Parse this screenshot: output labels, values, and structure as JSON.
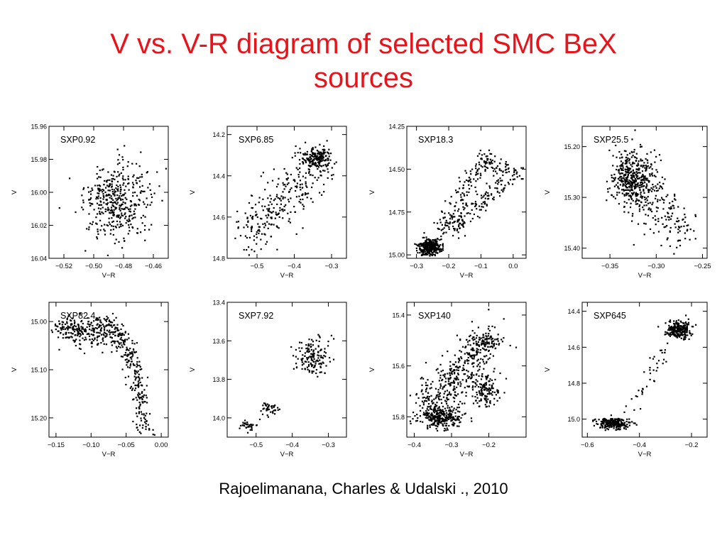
{
  "title": {
    "line1": "V vs. V-R diagram of selected SMC BeX",
    "line2": "sources"
  },
  "citation": "Rajoelimanana, Charles & Udalski ., 2010",
  "colors": {
    "title": "#e8141b",
    "ink": "#000000"
  },
  "chart_data": [
    {
      "type": "scatter",
      "label": "SXP0.92",
      "xlabel": "V−R",
      "ylabel": "V",
      "xlim": [
        -0.53,
        -0.45
      ],
      "ylim": [
        15.96,
        16.04
      ],
      "y_inverted": true,
      "xticks": [
        -0.52,
        -0.5,
        -0.48,
        -0.46
      ],
      "xtick_labels": [
        "−0.52",
        "−0.50",
        "−0.48",
        "−0.46"
      ],
      "yticks": [
        15.96,
        15.98,
        16.0,
        16.02,
        16.04
      ],
      "ytick_labels": [
        "15.96",
        "15.98",
        "16.00",
        "16.02",
        "16.04"
      ],
      "clusters": [
        {
          "cx": -0.485,
          "cy": 16.005,
          "sx": 0.011,
          "sy": 0.011,
          "n": 420
        }
      ]
    },
    {
      "type": "scatter",
      "label": "SXP6.85",
      "xlabel": "V−R",
      "ylabel": "V",
      "xlim": [
        -0.58,
        -0.26
      ],
      "ylim": [
        14.16,
        14.8
      ],
      "y_inverted": true,
      "xticks": [
        -0.5,
        -0.4,
        -0.3
      ],
      "xtick_labels": [
        "−0.5",
        "−0.4",
        "−0.3"
      ],
      "yticks": [
        14.2,
        14.4,
        14.6,
        14.8
      ],
      "ytick_labels": [
        "14.2",
        "14.4",
        "14.6",
        "14.8"
      ],
      "clusters": [
        {
          "cx": -0.34,
          "cy": 14.31,
          "sx": 0.018,
          "sy": 0.025,
          "n": 170
        },
        {
          "x0": -0.53,
          "y0": 14.7,
          "x1": -0.33,
          "y1": 14.33,
          "w": 0.03,
          "n": 300
        }
      ]
    },
    {
      "type": "scatter",
      "label": "SXP18.3",
      "xlabel": "V−R",
      "ylabel": "V",
      "xlim": [
        -0.33,
        0.04
      ],
      "ylim": [
        14.25,
        15.02
      ],
      "y_inverted": true,
      "xticks": [
        -0.3,
        -0.2,
        -0.1,
        0.0
      ],
      "xtick_labels": [
        "−0.3",
        "−0.2",
        "−0.1",
        "0.0"
      ],
      "yticks": [
        14.25,
        14.5,
        14.75,
        15.0
      ],
      "ytick_labels": [
        "14.25",
        "14.50",
        "14.75",
        "15.00"
      ],
      "clusters": [
        {
          "cx": -0.26,
          "cy": 14.95,
          "sx": 0.018,
          "sy": 0.025,
          "n": 320
        },
        {
          "x0": -0.23,
          "y0": 14.88,
          "x1": -0.1,
          "y1": 14.45,
          "w": 0.015,
          "n": 140
        },
        {
          "x0": -0.2,
          "y0": 14.85,
          "x1": -0.02,
          "y1": 14.55,
          "w": 0.015,
          "n": 120
        },
        {
          "x0": -0.1,
          "y0": 14.42,
          "x1": 0.02,
          "y1": 14.55,
          "w": 0.012,
          "n": 80
        }
      ]
    },
    {
      "type": "scatter",
      "label": "SXP25.5",
      "xlabel": "V−R",
      "ylabel": "V",
      "xlim": [
        -0.38,
        -0.245
      ],
      "ylim": [
        15.16,
        15.42
      ],
      "y_inverted": true,
      "xticks": [
        -0.35,
        -0.3,
        -0.25
      ],
      "xtick_labels": [
        "−0.35",
        "−0.30",
        "−0.25"
      ],
      "yticks": [
        15.2,
        15.3,
        15.4
      ],
      "ytick_labels": [
        "15.20",
        "15.30",
        "15.40"
      ],
      "clusters": [
        {
          "cx": -0.325,
          "cy": 15.26,
          "sx": 0.012,
          "sy": 0.028,
          "n": 450
        },
        {
          "x0": -0.31,
          "y0": 15.3,
          "x1": -0.27,
          "y1": 15.37,
          "w": 0.012,
          "n": 130
        }
      ]
    },
    {
      "type": "scatter",
      "label": "SXP82.4",
      "xlabel": "V−R",
      "ylabel": "V",
      "xlim": [
        -0.16,
        0.01
      ],
      "ylim": [
        14.96,
        15.24
      ],
      "y_inverted": true,
      "xticks": [
        -0.15,
        -0.1,
        -0.05,
        0.0
      ],
      "xtick_labels": [
        "−0.15",
        "−0.10",
        "−0.05",
        "0.00"
      ],
      "yticks": [
        15.0,
        15.1,
        15.2
      ],
      "ytick_labels": [
        "15.00",
        "15.10",
        "15.20"
      ],
      "clusters": [
        {
          "x0": -0.145,
          "y0": 15.015,
          "x1": -0.065,
          "y1": 15.02,
          "w": 0.009,
          "n": 300
        },
        {
          "x0": -0.065,
          "y0": 15.02,
          "x1": -0.04,
          "y1": 15.08,
          "w": 0.007,
          "n": 90
        },
        {
          "x0": -0.04,
          "y0": 15.08,
          "x1": -0.025,
          "y1": 15.235,
          "w": 0.006,
          "n": 140
        }
      ]
    },
    {
      "type": "scatter",
      "label": "SXP7.92",
      "xlabel": "V−R",
      "ylabel": "V",
      "xlim": [
        -0.58,
        -0.25
      ],
      "ylim": [
        13.4,
        14.1
      ],
      "y_inverted": true,
      "xticks": [
        -0.5,
        -0.4,
        -0.3
      ],
      "xtick_labels": [
        "−0.5",
        "−0.4",
        "−0.3"
      ],
      "yticks": [
        13.4,
        13.6,
        13.8,
        14.0
      ],
      "ytick_labels": [
        "13.4",
        "13.6",
        "13.8",
        "14.0"
      ],
      "clusters": [
        {
          "cx": -0.35,
          "cy": 13.68,
          "sx": 0.025,
          "sy": 0.05,
          "n": 150
        },
        {
          "cx": -0.465,
          "cy": 13.95,
          "sx": 0.012,
          "sy": 0.015,
          "n": 40
        },
        {
          "cx": -0.525,
          "cy": 14.04,
          "sx": 0.012,
          "sy": 0.012,
          "n": 35
        }
      ]
    },
    {
      "type": "scatter",
      "label": "SXP140",
      "xlabel": "V−R",
      "ylabel": "V",
      "xlim": [
        -0.42,
        -0.1
      ],
      "ylim": [
        15.35,
        15.88
      ],
      "y_inverted": true,
      "xticks": [
        -0.4,
        -0.3,
        -0.2
      ],
      "xtick_labels": [
        "−0.4",
        "−0.3",
        "−0.2"
      ],
      "yticks": [
        15.4,
        15.6,
        15.8
      ],
      "ytick_labels": [
        "15.4",
        "15.6",
        "15.8"
      ],
      "clusters": [
        {
          "cx": -0.33,
          "cy": 15.8,
          "sx": 0.025,
          "sy": 0.02,
          "n": 260
        },
        {
          "x0": -0.37,
          "y0": 15.78,
          "x1": -0.21,
          "y1": 15.5,
          "w": 0.03,
          "n": 450
        },
        {
          "cx": -0.21,
          "cy": 15.7,
          "sx": 0.015,
          "sy": 0.03,
          "n": 120
        },
        {
          "cx": -0.21,
          "cy": 15.5,
          "sx": 0.02,
          "sy": 0.015,
          "n": 70
        }
      ]
    },
    {
      "type": "scatter",
      "label": "SXP645",
      "xlabel": "V−R",
      "ylabel": "V",
      "xlim": [
        -0.62,
        -0.14
      ],
      "ylim": [
        14.35,
        15.1
      ],
      "y_inverted": true,
      "xticks": [
        -0.6,
        -0.4,
        -0.2
      ],
      "xtick_labels": [
        "−0.6",
        "−0.4",
        "−0.2"
      ],
      "yticks": [
        14.4,
        14.6,
        14.8,
        15.0
      ],
      "ytick_labels": [
        "14.4",
        "14.6",
        "14.8",
        "15.0"
      ],
      "clusters": [
        {
          "cx": -0.5,
          "cy": 15.02,
          "sx": 0.03,
          "sy": 0.015,
          "n": 250
        },
        {
          "cx": -0.25,
          "cy": 14.5,
          "sx": 0.025,
          "sy": 0.025,
          "n": 220
        },
        {
          "x0": -0.45,
          "y0": 15.0,
          "x1": -0.3,
          "y1": 14.6,
          "w": 0.015,
          "n": 40
        }
      ]
    }
  ]
}
